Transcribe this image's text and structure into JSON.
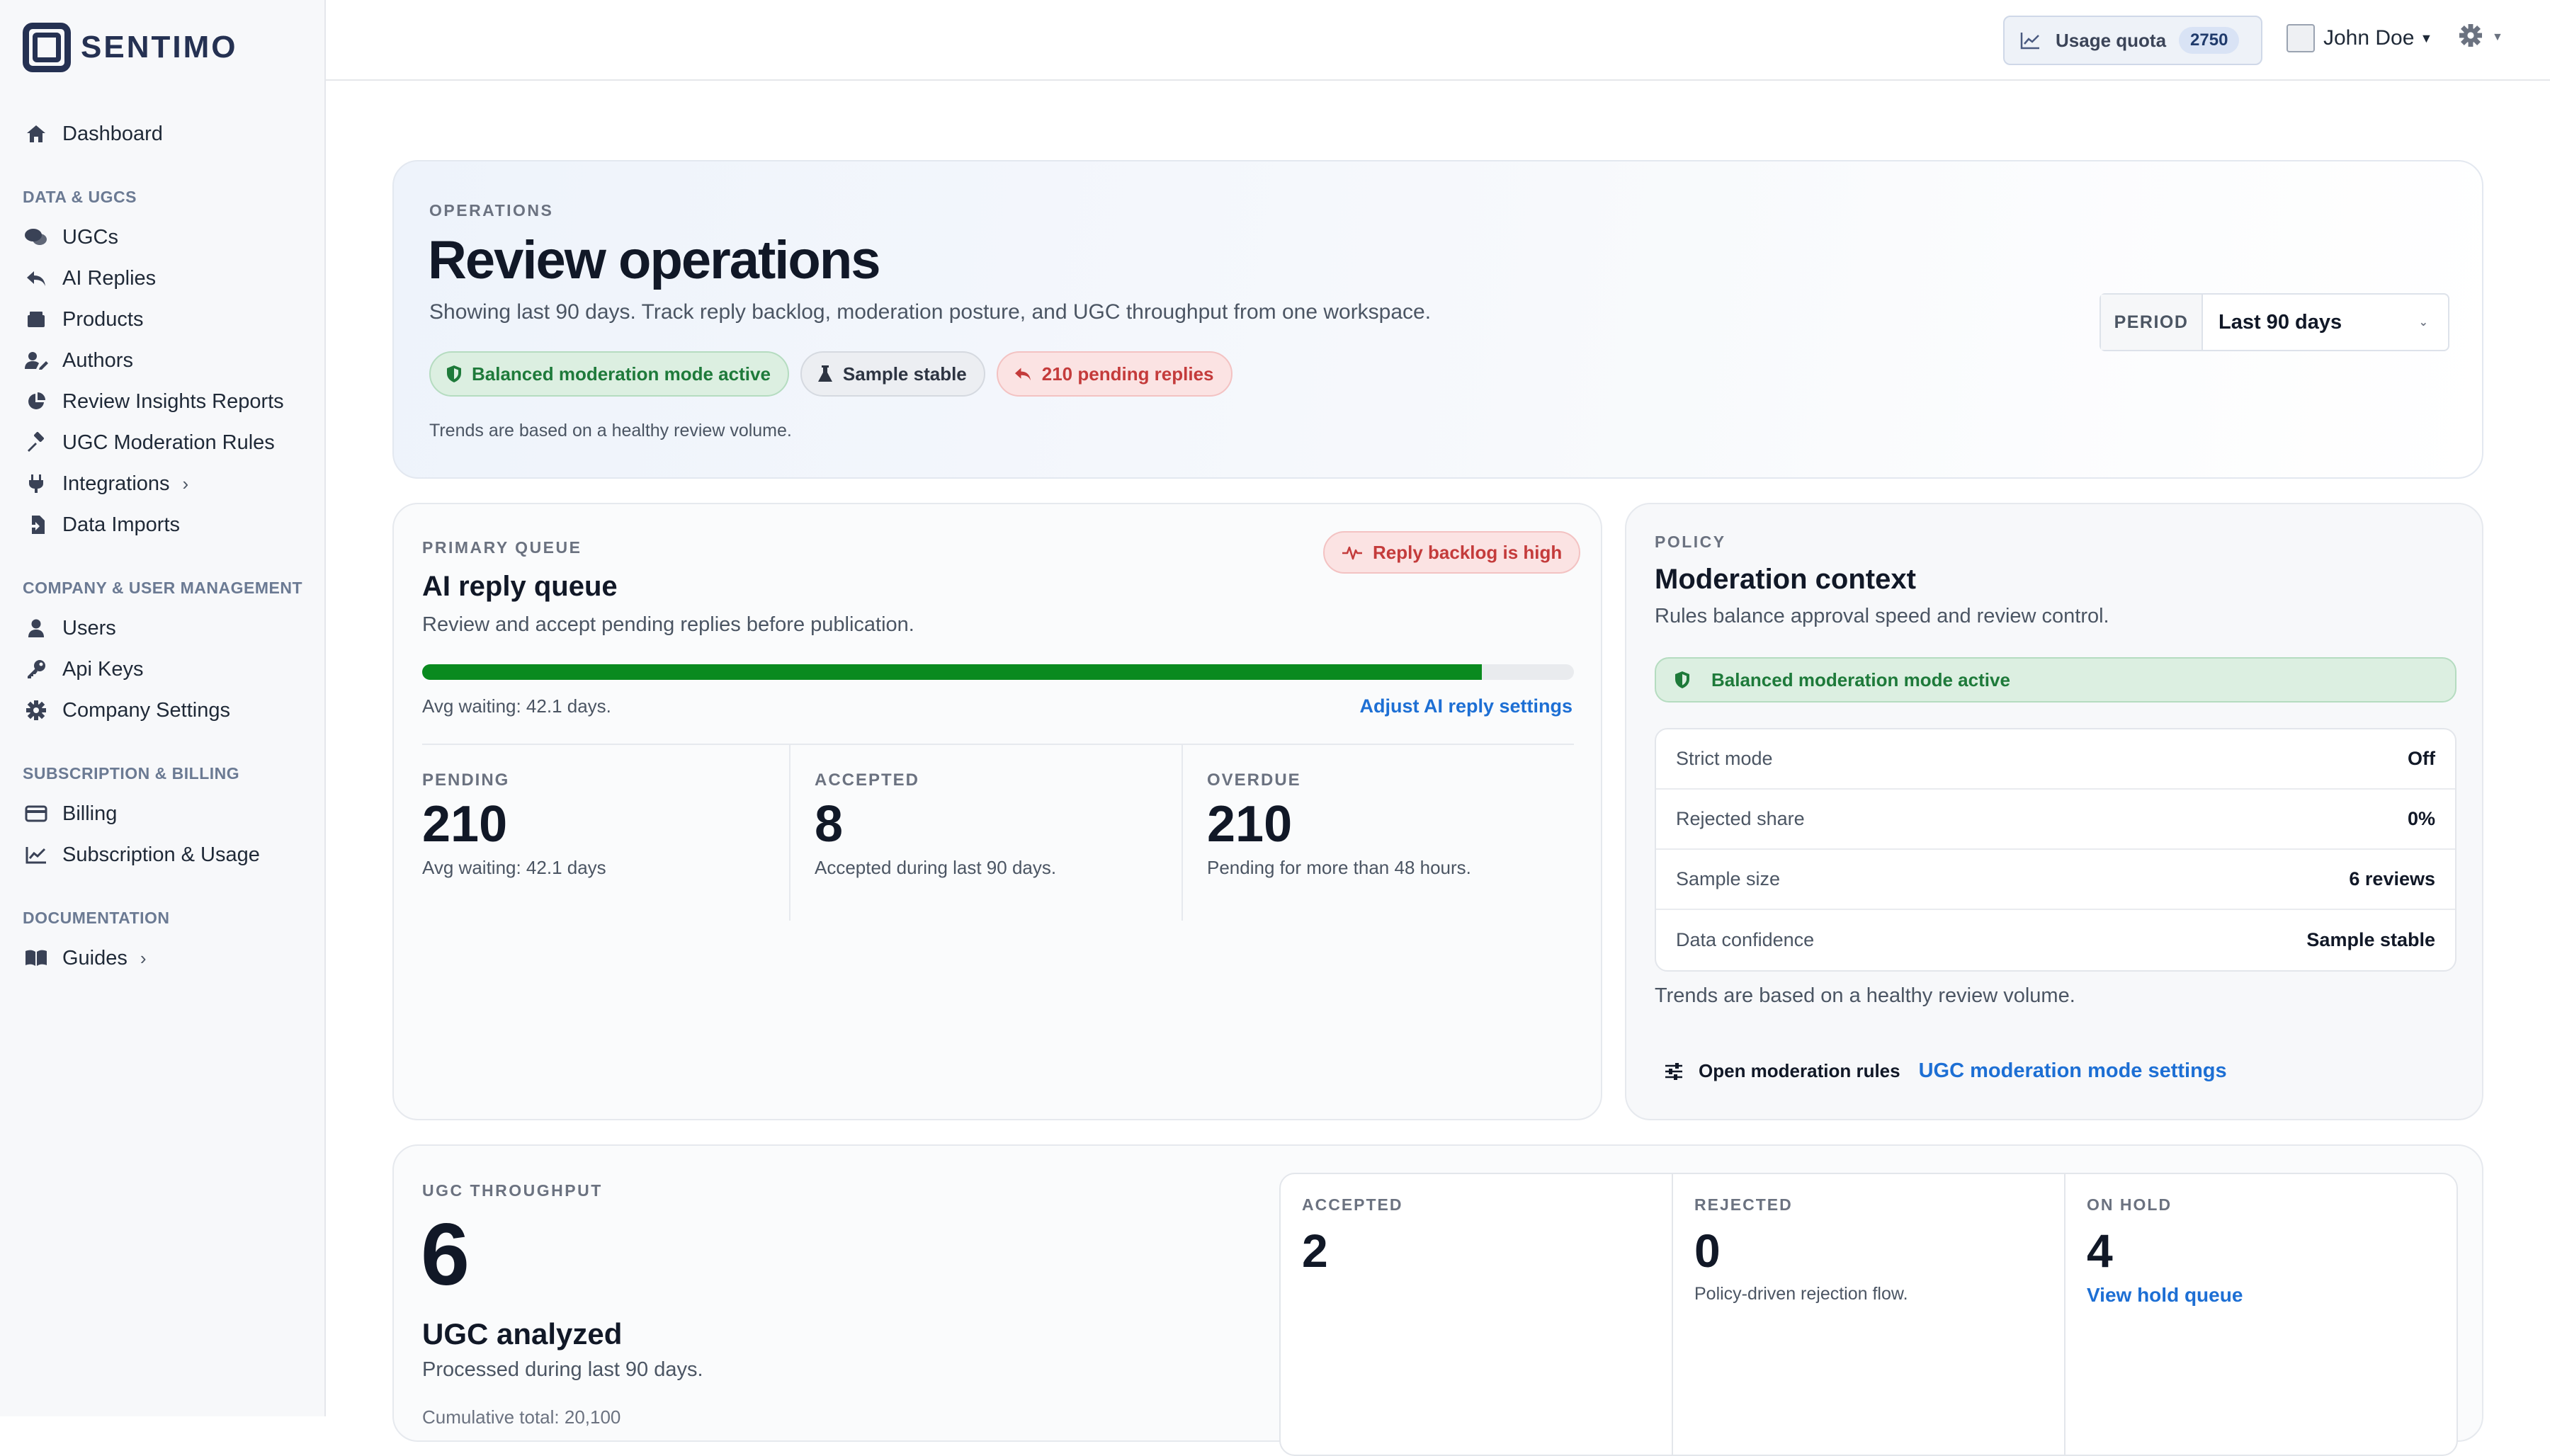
{
  "brand": {
    "name": "SENTIMO"
  },
  "sidebar": {
    "top": [
      {
        "label": "Dashboard",
        "icon": "home-icon"
      }
    ],
    "sections": [
      {
        "title": "DATA & UGCS",
        "items": [
          {
            "label": "UGCs",
            "icon": "comments-icon"
          },
          {
            "label": "AI Replies",
            "icon": "reply-icon"
          },
          {
            "label": "Products",
            "icon": "box-icon"
          },
          {
            "label": "Authors",
            "icon": "user-edit-icon"
          },
          {
            "label": "Review Insights Reports",
            "icon": "pie-chart-icon"
          },
          {
            "label": "UGC Moderation Rules",
            "icon": "gavel-icon"
          },
          {
            "label": "Integrations",
            "icon": "plug-icon",
            "has_children": true
          },
          {
            "label": "Data Imports",
            "icon": "file-import-icon"
          }
        ]
      },
      {
        "title": "COMPANY & USER MANAGEMENT",
        "items": [
          {
            "label": "Users",
            "icon": "user-icon"
          },
          {
            "label": "Api Keys",
            "icon": "key-icon"
          },
          {
            "label": "Company Settings",
            "icon": "cog-icon"
          }
        ]
      },
      {
        "title": "SUBSCRIPTION & BILLING",
        "items": [
          {
            "label": "Billing",
            "icon": "credit-card-icon"
          },
          {
            "label": "Subscription & Usage",
            "icon": "line-chart-icon"
          }
        ]
      },
      {
        "title": "DOCUMENTATION",
        "items": [
          {
            "label": "Guides",
            "icon": "book-icon",
            "has_children": true
          }
        ]
      }
    ]
  },
  "header": {
    "quota_label": "Usage quota",
    "quota_count": "2750",
    "user_name": "John Doe"
  },
  "hero": {
    "eyebrow": "OPERATIONS",
    "title": "Review operations",
    "subtitle": "Showing last 90 days. Track reply backlog, moderation posture, and UGC throughput from one workspace.",
    "chips": [
      {
        "label": "Balanced moderation mode active",
        "tone": "green",
        "icon": "shield-icon"
      },
      {
        "label": "Sample stable",
        "tone": "gray",
        "icon": "flask-icon"
      },
      {
        "label": "210 pending replies",
        "tone": "red",
        "icon": "reply-icon"
      }
    ],
    "note": "Trends are based on a healthy review volume.",
    "period_label": "PERIOD",
    "period_value": "Last 90 days"
  },
  "queue": {
    "eyebrow": "PRIMARY QUEUE",
    "title": "AI reply queue",
    "subtitle": "Review and accept pending replies before publication.",
    "badge": "Reply backlog is high",
    "progress_fraction": 0.92,
    "avg_waiting": "Avg waiting: 42.1 days.",
    "adjust_link": "Adjust AI reply settings",
    "stats": [
      {
        "label": "PENDING",
        "value": "210",
        "sub": "Avg waiting: 42.1 days"
      },
      {
        "label": "ACCEPTED",
        "value": "8",
        "sub": "Accepted during last 90 days."
      },
      {
        "label": "OVERDUE",
        "value": "210",
        "sub": "Pending for more than 48 hours."
      }
    ]
  },
  "policy": {
    "eyebrow": "POLICY",
    "title": "Moderation context",
    "subtitle": "Rules balance approval speed and review control.",
    "chip": "Balanced moderation mode active",
    "rows": [
      {
        "key": "Strict mode",
        "value": "Off"
      },
      {
        "key": "Rejected share",
        "value": "0%"
      },
      {
        "key": "Sample size",
        "value": "6 reviews"
      },
      {
        "key": "Data confidence",
        "value": "Sample stable"
      }
    ],
    "note": "Trends are based on a healthy review volume.",
    "open_rules": "Open moderation rules",
    "mode_settings_link": "UGC moderation mode settings"
  },
  "throughput": {
    "eyebrow": "UGC THROUGHPUT",
    "count": "6",
    "title": "UGC analyzed",
    "subtitle": "Processed during last 90 days.",
    "cut_text": "Cumulative total: 20,100",
    "cells": [
      {
        "label": "ACCEPTED",
        "value": "2",
        "sub": ""
      },
      {
        "label": "REJECTED",
        "value": "0",
        "sub": "Policy-driven rejection flow."
      },
      {
        "label": "ON HOLD",
        "value": "4",
        "sub": "",
        "link": "View hold queue"
      }
    ]
  }
}
